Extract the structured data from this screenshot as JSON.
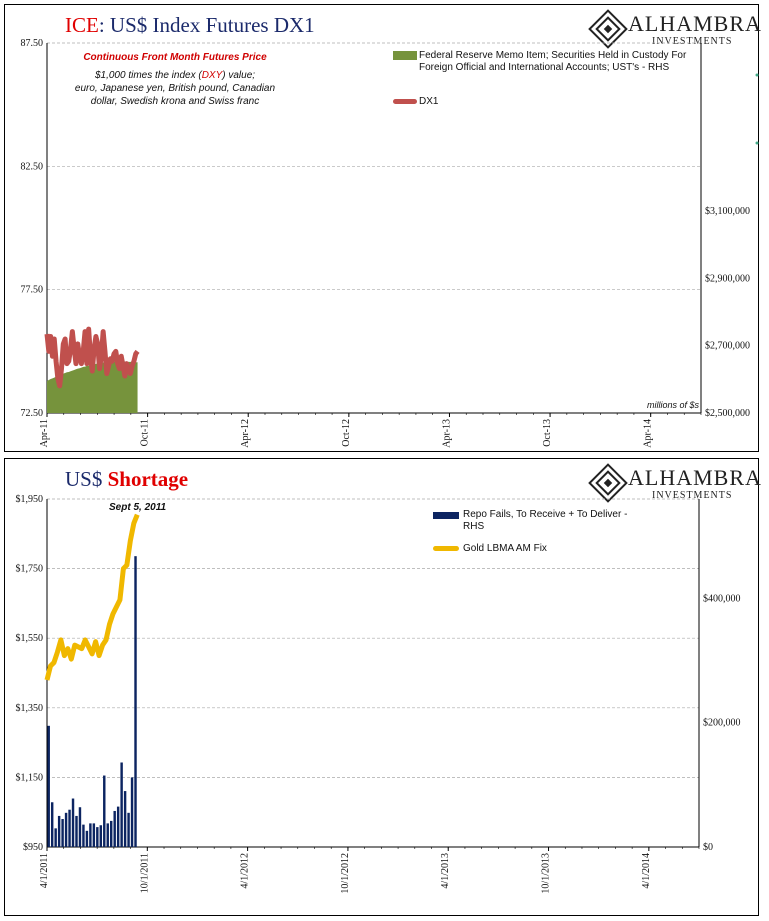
{
  "chart_data": [
    {
      "type": "area+line",
      "title_prefix": "ICE",
      "title_rest": ": US$ Index Futures DX1",
      "annotation_heading": "Continuous  Front Month Futures Price",
      "annotation_lines": [
        "$1,000 times the index (DXY) value;",
        "euro, Japanese yen, British pound, Canadian",
        "dollar, Swedish krona and Swiss franc"
      ],
      "annotation_highlight": "DXY",
      "rhs_unit_note": "millions of $s",
      "left_axis": {
        "min": 72.5,
        "max": 87.5,
        "ticks": [
          "72.50",
          "77.50",
          "82.50",
          "87.50"
        ]
      },
      "right_axis": {
        "min": 2500000,
        "max": 3600000,
        "ticks": [
          "$2,500,000",
          "$2,700,000",
          "$2,900,000",
          "$3,100,000"
        ],
        "tick_values": [
          2500000,
          2700000,
          2900000,
          3100000
        ]
      },
      "x_ticks": [
        "Apr-11",
        "Oct-11",
        "Apr-12",
        "Oct-12",
        "Apr-13",
        "Oct-13",
        "Apr-14"
      ],
      "x_range": [
        "2011-04",
        "2014-07"
      ],
      "series": [
        {
          "name": "Federal Reserve Memo Item; Securities Held in Custody For Foreign Official and International Accounts; UST's - RHS",
          "kind": "area",
          "axis": "right",
          "color": "#76933c",
          "x": [
            0,
            0.5,
            1,
            1.5,
            2,
            2.5,
            3,
            3.5,
            4,
            4.5,
            5,
            5.5,
            6,
            6.5,
            7,
            7.5,
            8,
            8.5,
            9,
            9.5,
            10,
            10.5,
            11,
            11.5,
            12,
            12.5,
            13,
            13.5,
            14,
            14.5,
            15,
            15.5,
            16,
            16.5,
            17,
            17.5,
            18,
            18.5,
            19,
            19.5,
            20,
            20.5,
            21,
            21.5,
            22,
            22.5,
            23,
            23.5,
            24,
            24.5,
            25
          ],
          "values": [
            2595000,
            2598000,
            2601000,
            2603000,
            2605000,
            2608000,
            2611000,
            2613000,
            2615000,
            2617000,
            2619000,
            2621000,
            2622000,
            2624000,
            2626000,
            2628000,
            2630000,
            2632000,
            2633000,
            2635000,
            2637000,
            2638000,
            2640000,
            2641000,
            2642000,
            2644000,
            2645000,
            2646000,
            2647000,
            2648000,
            2649000,
            2650000,
            2650000,
            2651000,
            2652000,
            2652000,
            2652000,
            2653000,
            2653000,
            2653000,
            2653000,
            2653000,
            2653000,
            2653000,
            2652000,
            2652000,
            2652000,
            2652000,
            2652000,
            2651000,
            2651000
          ]
        },
        {
          "name": "DX1",
          "kind": "line",
          "axis": "left",
          "color": "#c0504d",
          "x": [
            0,
            0.5,
            1,
            1.5,
            2,
            2.5,
            3,
            3.5,
            4,
            4.5,
            5,
            5.5,
            6,
            6.5,
            7,
            7.5,
            8,
            8.5,
            9,
            9.5,
            10,
            10.5,
            11,
            11.5,
            12,
            12.5,
            13,
            13.5,
            14,
            14.5,
            15,
            15.5,
            16,
            16.5,
            17,
            17.5,
            18,
            18.5,
            19,
            19.5,
            20,
            20.5,
            21,
            21.5,
            22,
            22.5,
            23,
            23.5,
            24,
            24.5,
            25
          ],
          "values": [
            75.7,
            75.0,
            75.6,
            74.8,
            75.5,
            74.6,
            73.9,
            73.6,
            74.3,
            75.3,
            75.5,
            74.5,
            74.6,
            75.1,
            75.8,
            75.1,
            74.5,
            75.3,
            74.8,
            74.5,
            75.0,
            75.8,
            74.5,
            75.9,
            74.8,
            74.2,
            75.1,
            75.6,
            75.3,
            74.3,
            74.8,
            75.8,
            75.0,
            74.1,
            74.4,
            74.7,
            74.6,
            74.9,
            75.0,
            74.5,
            74.3,
            74.8,
            74.4,
            74.0,
            74.5,
            74.3,
            74.1,
            74.4,
            74.6,
            74.9,
            75.0
          ]
        }
      ]
    },
    {
      "type": "bar+line",
      "title_prefix": "US$",
      "title_rest": "Shortage",
      "annotation": "Sept 5, 2011",
      "left_axis": {
        "min": 950,
        "max": 1950,
        "ticks": [
          "$950",
          "$1,150",
          "$1,350",
          "$1,550",
          "$1,750",
          "$1,950"
        ]
      },
      "right_axis": {
        "min": 0,
        "max": 560000,
        "ticks": [
          "$0",
          "$200,000",
          "$400,000"
        ],
        "tick_values": [
          0,
          200000,
          400000
        ]
      },
      "x_ticks": [
        "4/1/2011",
        "10/1/2011",
        "4/1/2012",
        "10/1/2012",
        "4/1/2013",
        "10/1/2013",
        "4/1/2014"
      ],
      "x_range": [
        "2011-04",
        "2014-07"
      ],
      "series": [
        {
          "name": "Repo Fails, To Receive + To Deliver - RHS",
          "kind": "bar",
          "axis": "right",
          "color": "#0c2461",
          "x": [
            0,
            1,
            2,
            3,
            4,
            5,
            6,
            7,
            8,
            9,
            10,
            11,
            12,
            13,
            14,
            15,
            16,
            17,
            18,
            19,
            20,
            21,
            22,
            23,
            24,
            25
          ],
          "values": [
            195000,
            72000,
            30000,
            50000,
            45000,
            55000,
            60000,
            78000,
            50000,
            64000,
            36000,
            26000,
            38000,
            38000,
            32000,
            35000,
            115000,
            38000,
            42000,
            58000,
            65000,
            136000,
            90000,
            55000,
            112000,
            468000
          ]
        },
        {
          "name": "Gold LBMA AM Fix",
          "kind": "line",
          "axis": "left",
          "color": "#f0b800",
          "x": [
            0,
            1,
            2,
            3,
            4,
            5,
            6,
            7,
            8,
            9,
            10,
            11,
            12,
            13,
            14,
            15,
            16,
            17,
            18,
            19,
            20,
            21,
            22,
            23,
            24,
            25,
            26
          ],
          "values": [
            1430,
            1470,
            1480,
            1510,
            1545,
            1500,
            1520,
            1490,
            1530,
            1525,
            1520,
            1545,
            1525,
            1505,
            1540,
            1500,
            1530,
            1545,
            1590,
            1620,
            1640,
            1660,
            1750,
            1760,
            1830,
            1880,
            1905
          ]
        }
      ]
    }
  ]
}
